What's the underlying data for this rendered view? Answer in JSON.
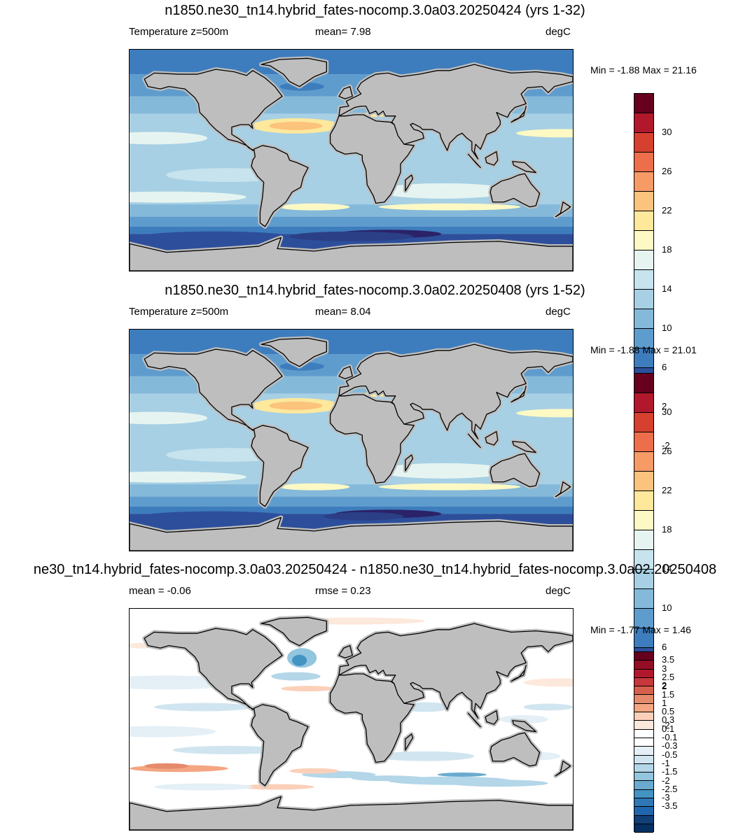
{
  "panels": [
    {
      "title": "n1850.ne30_tn14.hybrid_fates-nocomp.3.0a03.20250424 (yrs 1-32)",
      "left_label": "Temperature z=500m",
      "mid_label": "mean=   7.98",
      "units": "degC",
      "minmax": "Min =  -1.88 Max =  21.16",
      "map_type": "temperature"
    },
    {
      "title": "n1850.ne30_tn14.hybrid_fates-nocomp.3.0a02.20250408 (yrs 1-52)",
      "left_label": "Temperature z=500m",
      "mid_label": "mean=   8.04",
      "units": "degC",
      "minmax": "Min =  -1.88 Max =  21.01",
      "map_type": "temperature"
    },
    {
      "title": "ne30_tn14.hybrid_fates-nocomp.3.0a03.20250424 - n1850.ne30_tn14.hybrid_fates-nocomp.3.0a02.20250408",
      "left_label": "mean =  -0.06",
      "mid_label": "rmse =   0.23",
      "units": "degC",
      "minmax": "Min =  -1.77 Max =   1.46",
      "map_type": "difference"
    }
  ],
  "colorbars": {
    "temperature": {
      "colors": [
        "#67001f",
        "#b2182b",
        "#d6402f",
        "#ec6e4a",
        "#f69b66",
        "#fbc37c",
        "#fde89c",
        "#fdf9c4",
        "#e6f4f1",
        "#c6e3ee",
        "#a7d0e4",
        "#84b9da",
        "#5f9cce",
        "#3e7dbd",
        "#2d4f9b",
        "#2b2267"
      ],
      "labels": [
        "30",
        "26",
        "22",
        "18",
        "14",
        "10",
        "6",
        "2",
        "-2"
      ],
      "label_every": 2,
      "box_height": 28
    },
    "difference": {
      "colors": [
        "#67001f",
        "#940c26",
        "#b2182b",
        "#c8373a",
        "#d6604d",
        "#e58b6c",
        "#f4a582",
        "#fbd0b9",
        "#fde8dc",
        "#ffffff",
        "#ffffff",
        "#e4eff6",
        "#d1e5f0",
        "#b3d6e8",
        "#92c5de",
        "#6aaad0",
        "#4393c3",
        "#2f78b5",
        "#2166ac",
        "#113f78",
        "#053061"
      ],
      "labels": [
        "3.5",
        "3",
        "2.5",
        "2",
        "1.5",
        "1",
        "0.5",
        "0.3",
        "0.1",
        "-0.1",
        "-0.3",
        "-0.5",
        "-1",
        "-1.5",
        "-2",
        "-2.5",
        "-3",
        "-3.5"
      ],
      "label_every": 1,
      "box_height": 12.3
    }
  }
}
